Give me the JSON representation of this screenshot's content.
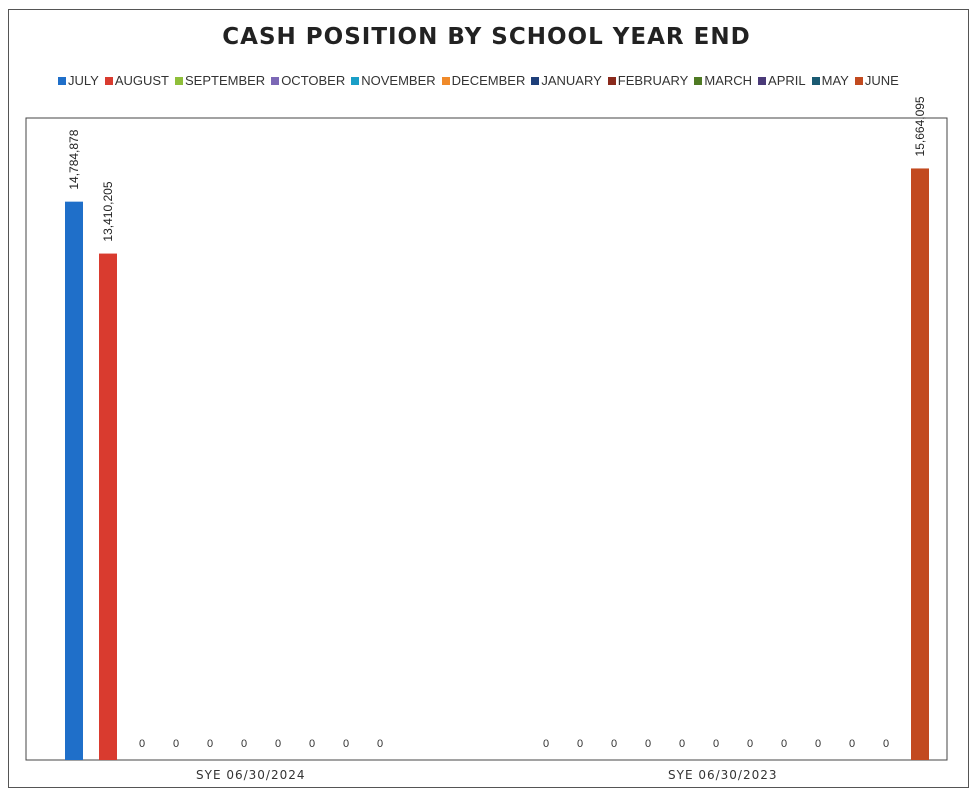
{
  "chart_data": {
    "type": "bar",
    "title": "CASH POSITION BY SCHOOL YEAR END",
    "categories": [
      "SYE 06/30/2024",
      "SYE 06/30/2023"
    ],
    "series": [
      {
        "name": "JULY",
        "color": "#1f6fc9",
        "values": [
          14784878,
          0
        ]
      },
      {
        "name": "AUGUST",
        "color": "#d93b2f",
        "values": [
          13410205,
          0
        ]
      },
      {
        "name": "SEPTEMBER",
        "color": "#8fbf3a",
        "values": [
          0,
          0
        ]
      },
      {
        "name": "OCTOBER",
        "color": "#7c68b6",
        "values": [
          0,
          0
        ]
      },
      {
        "name": "NOVEMBER",
        "color": "#1a9fc7",
        "values": [
          0,
          0
        ]
      },
      {
        "name": "DECEMBER",
        "color": "#f08a2a",
        "values": [
          0,
          0
        ]
      },
      {
        "name": "JANUARY",
        "color": "#1e3f7a",
        "values": [
          0,
          0
        ]
      },
      {
        "name": "FEBRUARY",
        "color": "#8a2a1c",
        "values": [
          0,
          0
        ]
      },
      {
        "name": "MARCH",
        "color": "#4f7a23",
        "values": [
          0,
          0
        ]
      },
      {
        "name": "APRIL",
        "color": "#4a3a78",
        "values": [
          0,
          0
        ]
      },
      {
        "name": "MAY",
        "color": "#1a5a72",
        "values": [
          null,
          0
        ]
      },
      {
        "name": "JUNE",
        "color": "#c24a1f",
        "values": [
          null,
          15664095
        ]
      }
    ],
    "data_labels": {
      "2024": [
        "14,784,878",
        "13,410,205",
        "0",
        "0",
        "0",
        "0",
        "0",
        "0",
        "0",
        "0"
      ],
      "2023": [
        "0",
        "0",
        "0",
        "0",
        "0",
        "0",
        "0",
        "0",
        "0",
        "0",
        "0",
        "15,664,095"
      ]
    },
    "ylim": [
      0,
      17000000
    ],
    "legend_position": "top",
    "grid": false
  }
}
